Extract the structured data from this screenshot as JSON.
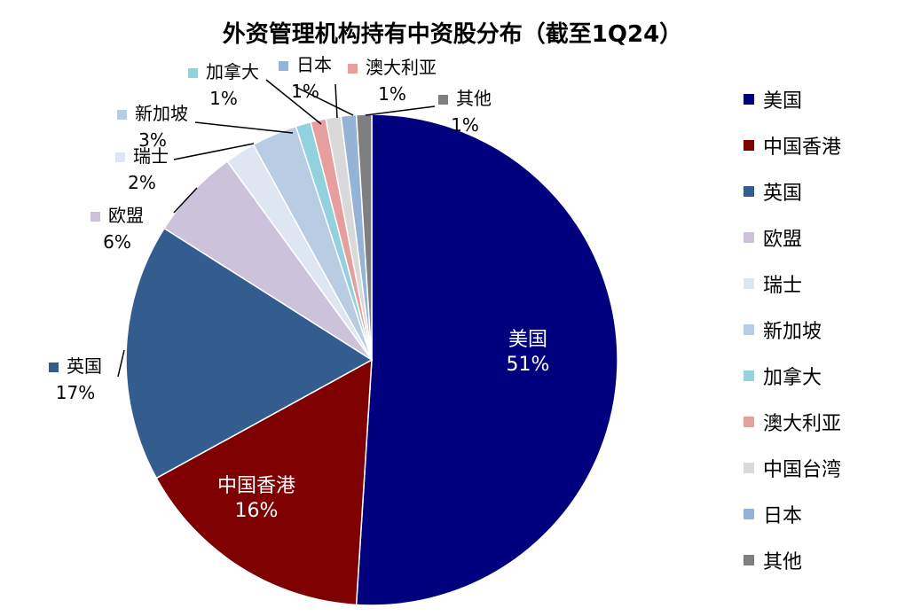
{
  "chart_data": {
    "type": "pie",
    "title": "外资管理机构持有中资股分布（截至1Q24）",
    "legend": "right",
    "slices": [
      {
        "name": "美国",
        "value": 51,
        "label": "51%",
        "color": "#00007f"
      },
      {
        "name": "中国香港",
        "value": 16,
        "label": "16%",
        "color": "#7f0000"
      },
      {
        "name": "英国",
        "value": 17,
        "label": "17%",
        "color": "#345d8f"
      },
      {
        "name": "欧盟",
        "value": 6,
        "label": "6%",
        "color": "#cdc2dc"
      },
      {
        "name": "瑞士",
        "value": 2,
        "label": "2%",
        "color": "#dde6f2"
      },
      {
        "name": "新加坡",
        "value": 3,
        "label": "3%",
        "color": "#b8cce4"
      },
      {
        "name": "加拿大",
        "value": 1,
        "label": "1%",
        "color": "#92d1de"
      },
      {
        "name": "澳大利亚",
        "value": 1,
        "label": "1%",
        "color": "#e69e9e"
      },
      {
        "name": "中国台湾",
        "value": 1,
        "label": "",
        "color": "#d9d9d9"
      },
      {
        "name": "日本",
        "value": 1,
        "label": "1%",
        "color": "#95b3d7"
      },
      {
        "name": "其他",
        "value": 1,
        "label": "1%",
        "color": "#7f7f7f"
      }
    ]
  }
}
